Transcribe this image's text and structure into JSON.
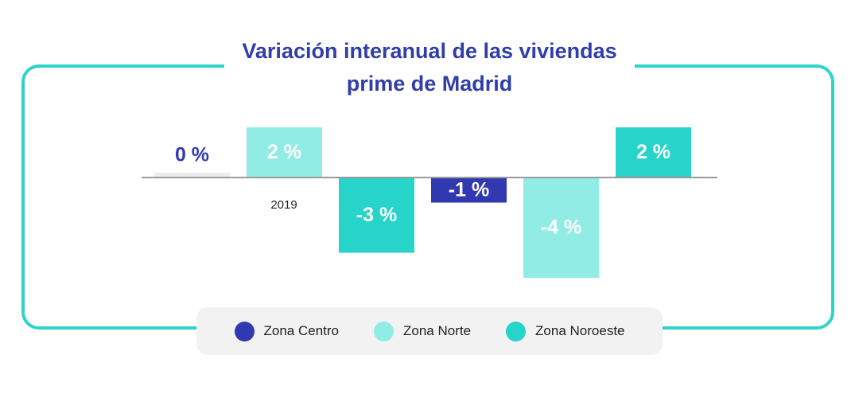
{
  "title": {
    "line1": "Variación interanual de las viviendas",
    "line2": "prime de Madrid"
  },
  "colors": {
    "frame": "#2fd3c9",
    "title": "#2f3ea8"
  },
  "chart_data": {
    "type": "bar",
    "title": "Variación interanual de las viviendas prime de Madrid",
    "categories": [
      "2019"
    ],
    "ylabel": "",
    "xlabel": "",
    "unit": "%",
    "ylim": [
      -4,
      2
    ],
    "bars": [
      {
        "series": "Zona Centro",
        "value": 0,
        "label": "0 %",
        "color": "#3039b0"
      },
      {
        "series": "Zona Norte",
        "value": 2,
        "label": "2 %",
        "color": "#91ece6"
      },
      {
        "series": "Zona Noroeste",
        "value": -3,
        "label": "-3 %",
        "color": "#26d4c9"
      },
      {
        "series": "Zona Centro",
        "value": -1,
        "label": "-1 %",
        "color": "#3039b0"
      },
      {
        "series": "Zona Norte",
        "value": -4,
        "label": "-4 %",
        "color": "#91ece6"
      },
      {
        "series": "Zona Noroeste",
        "value": 2,
        "label": "2 %",
        "color": "#26d4c9"
      }
    ]
  },
  "legend": [
    {
      "label": "Zona Centro",
      "color": "#3039b0"
    },
    {
      "label": "Zona Norte",
      "color": "#91ece6"
    },
    {
      "label": "Zona Noroeste",
      "color": "#26d4c9"
    }
  ]
}
